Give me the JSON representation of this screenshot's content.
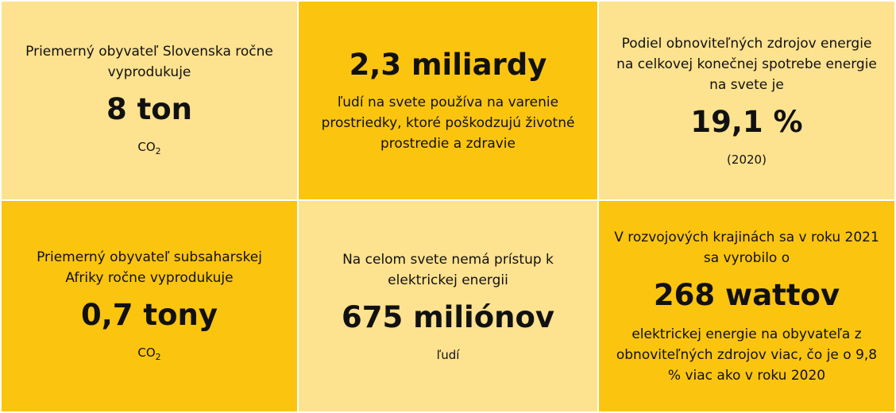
{
  "tiles": [
    {
      "intro": "Priemerný obyvateľ Slovenska ročne vyprodukuje",
      "value": "8 ton",
      "unit": "CO",
      "unit_sub": "2"
    },
    {
      "value": "2,3 miliardy",
      "text": "ľudí na svete používa na varenie prostriedky, ktoré poškodzujú životné prostredie a zdravie"
    },
    {
      "intro": "Podiel obnoviteľných zdrojov energie na celkovej konečnej spotrebe energie na svete je",
      "value": "19,1 %",
      "note": "(2020)"
    },
    {
      "intro": "Priemerný obyvateľ subsaharskej Afriky ročne vyprodukuje",
      "value": "0,7 tony",
      "unit": "CO",
      "unit_sub": "2"
    },
    {
      "intro": "Na celom svete nemá prístup k elektrickej energii",
      "value": "675 miliónov",
      "note": "ľudí"
    },
    {
      "intro": "V rozvojových krajinách sa v roku 2021 sa vyrobilo o",
      "value": "268 wattov",
      "text": "elektrickej energie na obyvateľa z obnoviteľných zdrojov viac, čo je o 9,8 % viac ako v roku 2020"
    }
  ],
  "colors": {
    "light_tile": "#fde28f",
    "dark_tile": "#fbc40f",
    "text": "#111111"
  }
}
